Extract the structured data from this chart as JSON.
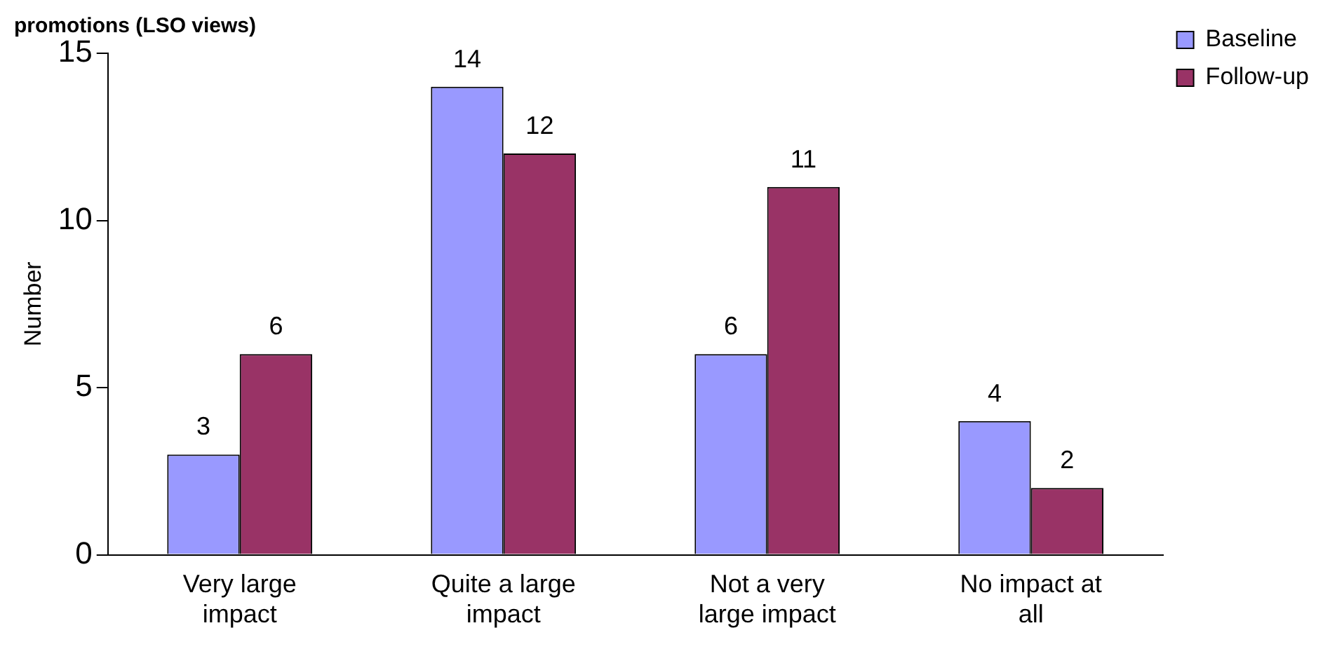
{
  "chart_data": {
    "type": "bar",
    "title": "promotions (LSO views)",
    "ylabel": "Number",
    "categories": [
      "Very large impact",
      "Quite a large impact",
      "Not a very large impact",
      "No impact at all"
    ],
    "series": [
      {
        "name": "Baseline",
        "color": "#9999ff",
        "values": [
          3,
          14,
          6,
          4
        ]
      },
      {
        "name": "Follow-up",
        "color": "#993366",
        "values": [
          6,
          12,
          11,
          2
        ]
      }
    ],
    "ylim": [
      0,
      15
    ],
    "yticks": [
      0,
      5,
      10,
      15
    ],
    "grid": false,
    "legend": "top right",
    "data_labels": true
  }
}
